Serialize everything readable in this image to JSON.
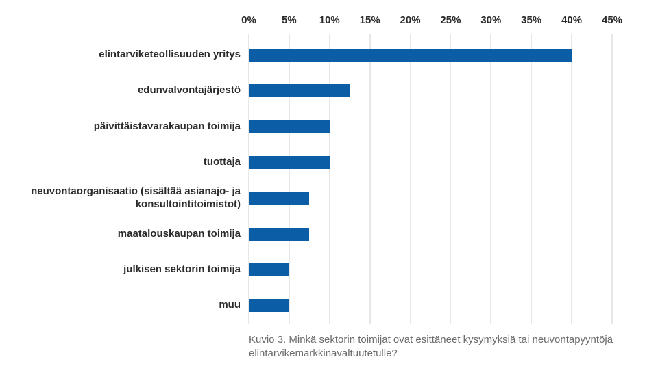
{
  "chart_data": {
    "type": "bar",
    "orientation": "horizontal",
    "title": "",
    "legend": "none",
    "grid": true,
    "categories": [
      "elintarviketeollisuuden yritys",
      "edunvalvontajärjestö",
      "päivittäistavarakaupan toimija",
      "tuottaja",
      "neuvontaorganisaatio (sisältää asianajo- ja\nkonsultointitoimistot)",
      "maatalouskaupan toimija",
      "julkisen sektorin toimija",
      "muu"
    ],
    "values": [
      40,
      12.5,
      10,
      10,
      7.5,
      7.5,
      5,
      5
    ],
    "unit": "%",
    "x_axis": {
      "position": "top",
      "min": 0,
      "max": 45,
      "step": 5,
      "tick_labels": [
        "0%",
        "5%",
        "10%",
        "15%",
        "20%",
        "25%",
        "30%",
        "35%",
        "40%",
        "45%"
      ]
    },
    "colors": {
      "bar": "#0b5da6",
      "gridline": "#e7e7e7",
      "axis_text": "#2b2b2b",
      "caption_text": "#6b6b6b",
      "background": "#ffffff"
    },
    "caption": "Kuvio 3. Minkä sektorin toimijat ovat esittäneet kysymyksiä tai neuvontapyyntöjä elintarvikemarkkinavaltuutetulle?"
  }
}
